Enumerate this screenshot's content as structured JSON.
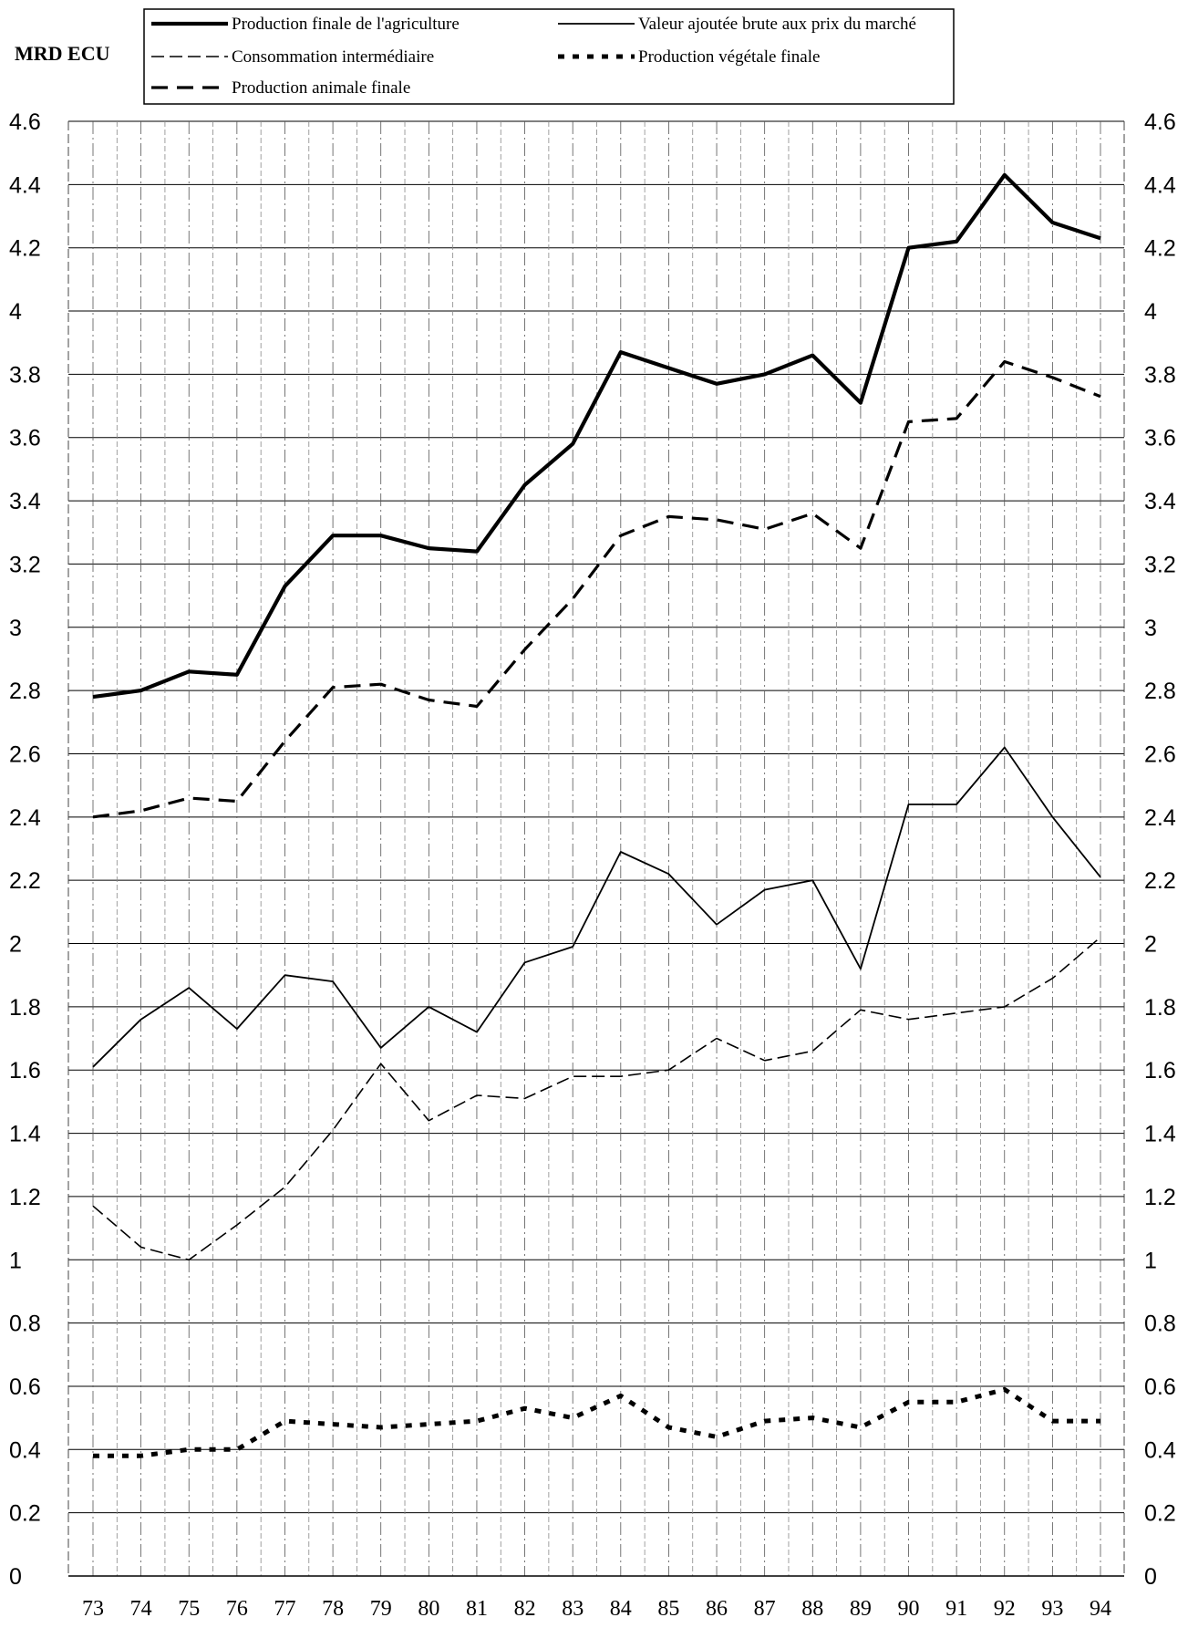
{
  "chart_data": {
    "type": "line",
    "ylabel": "MRD ECU",
    "categories": [
      "73",
      "74",
      "75",
      "76",
      "77",
      "78",
      "79",
      "80",
      "81",
      "82",
      "83",
      "84",
      "85",
      "86",
      "87",
      "88",
      "89",
      "90",
      "91",
      "92",
      "93",
      "94"
    ],
    "ylim": [
      0,
      4.6
    ],
    "yticks": [
      "0",
      "0.2",
      "0.4",
      "0.6",
      "0.8",
      "1",
      "1.2",
      "1.4",
      "1.6",
      "1.8",
      "2",
      "2.2",
      "2.4",
      "2.6",
      "2.8",
      "3",
      "3.2",
      "3.4",
      "3.6",
      "3.8",
      "4",
      "4.2",
      "4.4",
      "4.6"
    ],
    "grid": true,
    "legend_position": "top",
    "series": [
      {
        "name": "Production finale de l'agriculture",
        "style": "thick-solid",
        "color": "#000000",
        "values": [
          2.78,
          2.8,
          2.86,
          2.85,
          3.13,
          3.29,
          3.29,
          3.25,
          3.24,
          3.45,
          3.58,
          3.87,
          3.82,
          3.77,
          3.8,
          3.86,
          3.71,
          4.2,
          4.22,
          4.43,
          4.28,
          4.23
        ]
      },
      {
        "name": "Valeur ajoutée brute aux prix du marché",
        "style": "thin-solid",
        "color": "#000000",
        "values": [
          1.61,
          1.76,
          1.86,
          1.73,
          1.9,
          1.88,
          1.67,
          1.8,
          1.72,
          1.94,
          1.99,
          2.29,
          2.22,
          2.06,
          2.17,
          2.2,
          1.92,
          2.44,
          2.44,
          2.62,
          2.4,
          2.21
        ]
      },
      {
        "name": "Consommation intermédiaire",
        "style": "thin-dashed",
        "color": "#000000",
        "values": [
          1.17,
          1.04,
          1.0,
          1.11,
          1.23,
          1.41,
          1.62,
          1.44,
          1.52,
          1.51,
          1.58,
          1.58,
          1.6,
          1.7,
          1.63,
          1.66,
          1.79,
          1.76,
          1.78,
          1.8,
          1.89,
          2.02
        ]
      },
      {
        "name": "Production végétale finale",
        "style": "thick-dotted",
        "color": "#000000",
        "values": [
          0.38,
          0.38,
          0.4,
          0.4,
          0.49,
          0.48,
          0.47,
          0.48,
          0.49,
          0.53,
          0.5,
          0.57,
          0.47,
          0.44,
          0.49,
          0.5,
          0.47,
          0.55,
          0.55,
          0.59,
          0.49,
          0.49
        ]
      },
      {
        "name": "Production animale finale",
        "style": "thick-dashed",
        "color": "#000000",
        "values": [
          2.4,
          2.42,
          2.46,
          2.45,
          2.64,
          2.81,
          2.82,
          2.77,
          2.75,
          2.93,
          3.09,
          3.29,
          3.35,
          3.34,
          3.31,
          3.36,
          3.25,
          3.65,
          3.66,
          3.84,
          3.79,
          3.73
        ]
      }
    ]
  }
}
